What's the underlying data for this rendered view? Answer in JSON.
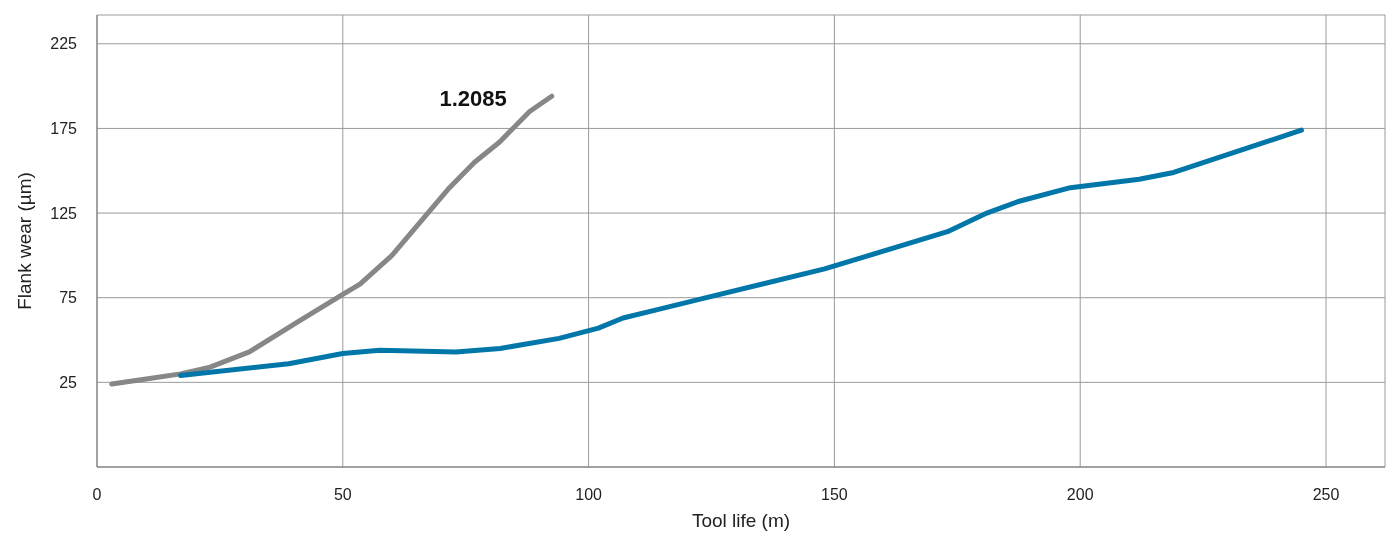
{
  "chart_data": {
    "type": "line",
    "xlabel": "Tool life (m)",
    "ylabel": "Flank wear (µm)",
    "xlim": [
      0,
      262
    ],
    "ylim": [
      -25,
      242
    ],
    "xticks": [
      0,
      50,
      100,
      150,
      200,
      250
    ],
    "yticks": [
      25,
      75,
      125,
      175,
      225
    ],
    "grid": true,
    "legend": false,
    "marker": "none",
    "line_style": "solid",
    "series": [
      {
        "name": "1.2085",
        "color": "#878787",
        "x": [
          3,
          10,
          17,
          23,
          31,
          41,
          50,
          53.5,
          60,
          71.7,
          76.8,
          81.9,
          88,
          92.5
        ],
        "values": [
          24,
          27,
          30,
          34,
          43,
          61,
          77,
          83,
          100,
          140,
          155,
          167,
          185,
          194
        ]
      },
      {
        "color": "#0077a8",
        "x": [
          17,
          39,
          50,
          57.5,
          73,
          82,
          94,
          102,
          107,
          114,
          122.5,
          148,
          173,
          181,
          187.6,
          198,
          212,
          219,
          245
        ],
        "values": [
          29,
          36,
          42,
          44,
          43,
          45,
          51,
          57,
          63,
          68,
          74,
          92,
          114,
          125,
          132,
          140,
          145,
          149,
          174
        ]
      }
    ]
  }
}
